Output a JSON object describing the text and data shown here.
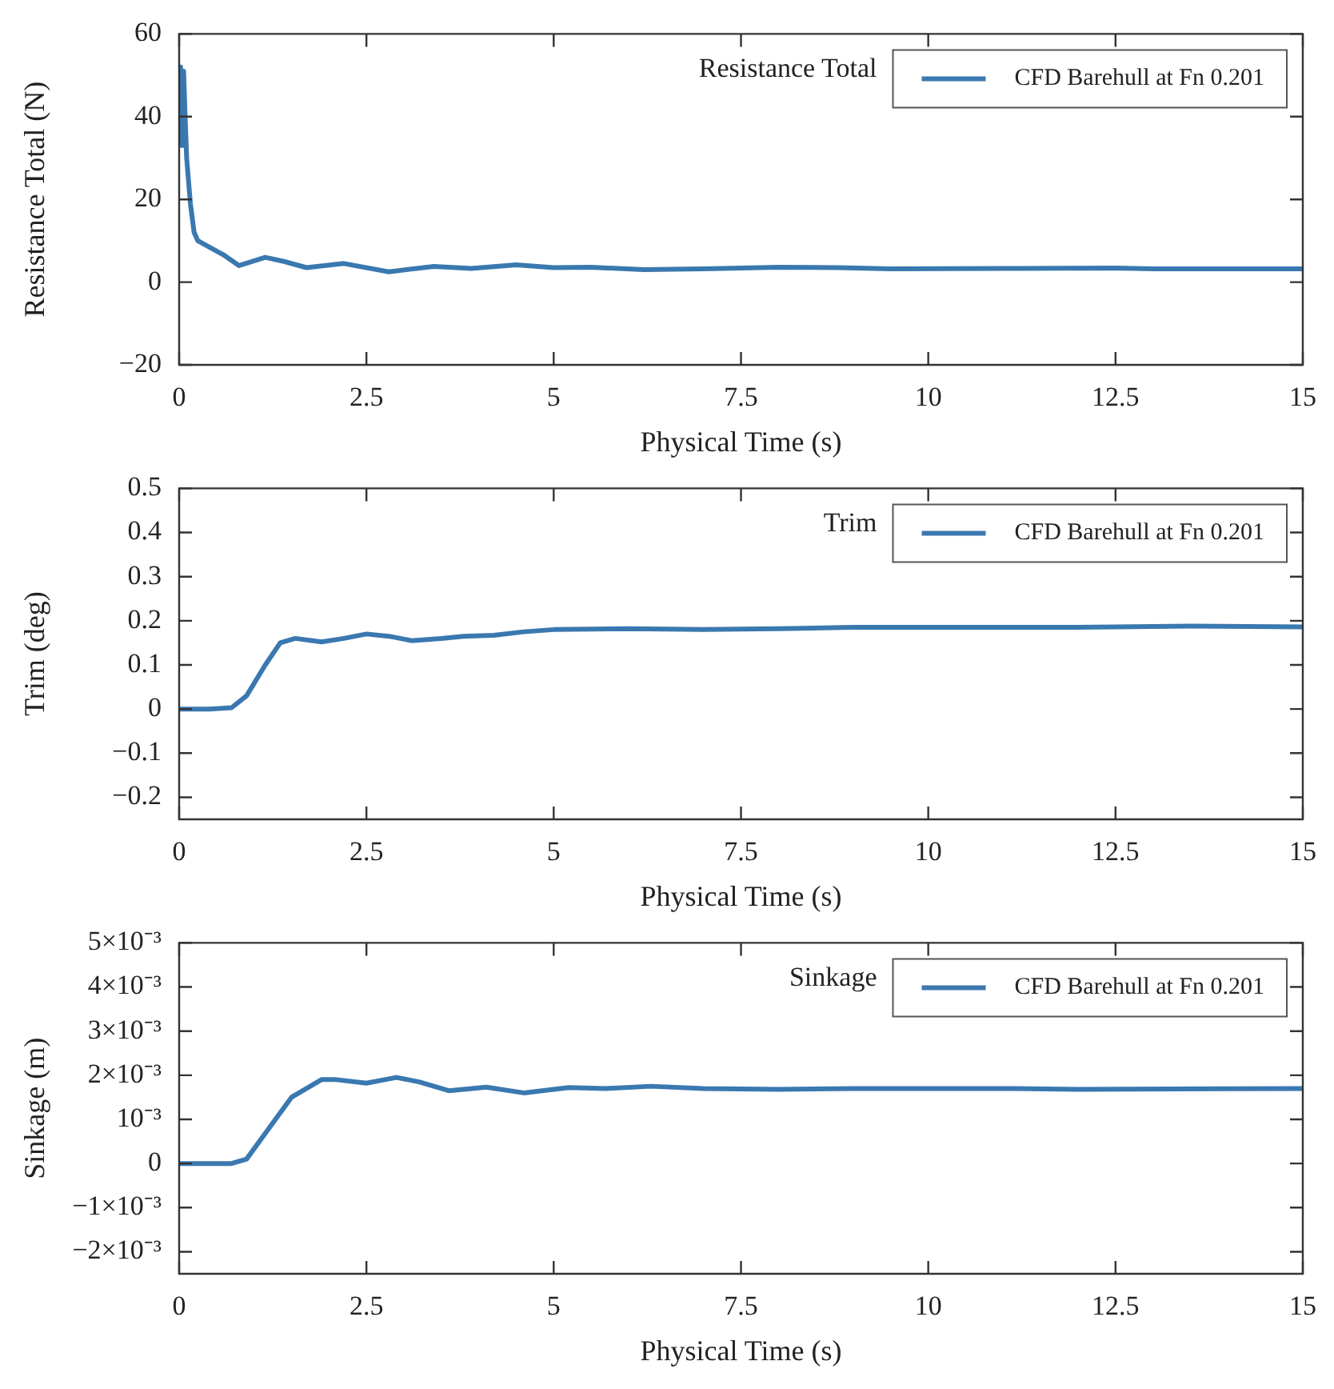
{
  "chart_data": [
    {
      "type": "line",
      "title": "Resistance Total",
      "xlabel": "Physical Time (s)",
      "ylabel": "Resistance Total (N)",
      "xlim": [
        0,
        15
      ],
      "xticks": [
        0,
        2.5,
        5,
        7.5,
        10,
        12.5,
        15
      ],
      "ylim": [
        -20,
        60
      ],
      "yticks": [
        {
          "value": -20,
          "label": "−20"
        },
        0,
        20,
        40,
        60
      ],
      "legend": "top right",
      "grid": false,
      "marker": "none",
      "line_style": "solid",
      "series": [
        {
          "name": "CFD Barehull at Fn 0.201",
          "color": "#3a78b0",
          "x": [
            0,
            0.02,
            0.04,
            0.06,
            0.08,
            0.1,
            0.15,
            0.2,
            0.25,
            0.35,
            0.5,
            0.6,
            0.8,
            1.15,
            1.4,
            1.7,
            2.2,
            2.8,
            3.4,
            3.9,
            4.5,
            5,
            5.5,
            6.2,
            7,
            8,
            8.8,
            9.5,
            11,
            12.5,
            13,
            15
          ],
          "values": [
            35,
            52,
            33,
            51,
            40,
            30,
            19,
            12,
            10,
            9,
            7.5,
            6.5,
            4,
            6,
            5,
            3.5,
            4.5,
            2.5,
            3.8,
            3.3,
            4.2,
            3.5,
            3.6,
            3,
            3.2,
            3.6,
            3.5,
            3.2,
            3.3,
            3.4,
            3.2,
            3.2
          ]
        }
      ]
    },
    {
      "type": "line",
      "title": "Trim",
      "xlabel": "Physical Time (s)",
      "ylabel": "Trim (deg)",
      "xlim": [
        0,
        15
      ],
      "xticks": [
        0,
        2.5,
        5,
        7.5,
        10,
        12.5,
        15
      ],
      "ylim": [
        -0.25,
        0.5
      ],
      "yticks": [
        {
          "value": -0.2,
          "label": "−0.2"
        },
        {
          "value": -0.1,
          "label": "−0.1"
        },
        0,
        0.1,
        0.2,
        0.3,
        0.4,
        0.5
      ],
      "legend": "top right",
      "grid": false,
      "marker": "none",
      "line_style": "solid",
      "series": [
        {
          "name": "CFD Barehull at Fn 0.201",
          "color": "#3a78b0",
          "x": [
            0,
            0.4,
            0.7,
            0.9,
            1.15,
            1.35,
            1.55,
            1.9,
            2.2,
            2.5,
            2.8,
            3.1,
            3.5,
            3.8,
            4.2,
            4.6,
            5,
            6,
            7,
            8,
            9,
            10,
            12,
            13.5,
            15
          ],
          "values": [
            0,
            0,
            0.003,
            0.03,
            0.1,
            0.15,
            0.16,
            0.152,
            0.16,
            0.17,
            0.165,
            0.155,
            0.16,
            0.165,
            0.167,
            0.175,
            0.18,
            0.182,
            0.18,
            0.182,
            0.185,
            0.185,
            0.185,
            0.188,
            0.186
          ]
        }
      ]
    },
    {
      "type": "line",
      "title": "Sinkage",
      "xlabel": "Physical Time (s)",
      "ylabel": "Sinkage (m)",
      "xlim": [
        0,
        15
      ],
      "xticks": [
        0,
        2.5,
        5,
        7.5,
        10,
        12.5,
        15
      ],
      "ylim": [
        -0.0025,
        0.005
      ],
      "yticks": [
        {
          "value": -0.002,
          "label": "−2×10⁻³"
        },
        {
          "value": -0.001,
          "label": "−1×10⁻³"
        },
        0,
        {
          "value": 0.001,
          "label": "10⁻³"
        },
        {
          "value": 0.002,
          "label": "2×10⁻³"
        },
        {
          "value": 0.003,
          "label": "3×10⁻³"
        },
        {
          "value": 0.004,
          "label": "4×10⁻³"
        },
        {
          "value": 0.005,
          "label": "5×10⁻³"
        }
      ],
      "legend": "top right",
      "grid": false,
      "marker": "none",
      "line_style": "solid",
      "series": [
        {
          "name": "CFD Barehull at Fn 0.201",
          "color": "#3a78b0",
          "x": [
            0,
            0.4,
            0.7,
            0.9,
            1.2,
            1.5,
            1.9,
            2.1,
            2.5,
            2.9,
            3.2,
            3.6,
            4.1,
            4.6,
            5.2,
            5.7,
            6.3,
            7,
            8,
            9,
            11,
            12,
            15
          ],
          "values": [
            0,
            0,
            0,
            0.0001,
            0.0008,
            0.0015,
            0.0019,
            0.0019,
            0.00182,
            0.00195,
            0.00185,
            0.00165,
            0.00173,
            0.0016,
            0.00172,
            0.0017,
            0.00175,
            0.0017,
            0.00168,
            0.0017,
            0.0017,
            0.00168,
            0.0017
          ]
        }
      ]
    }
  ]
}
